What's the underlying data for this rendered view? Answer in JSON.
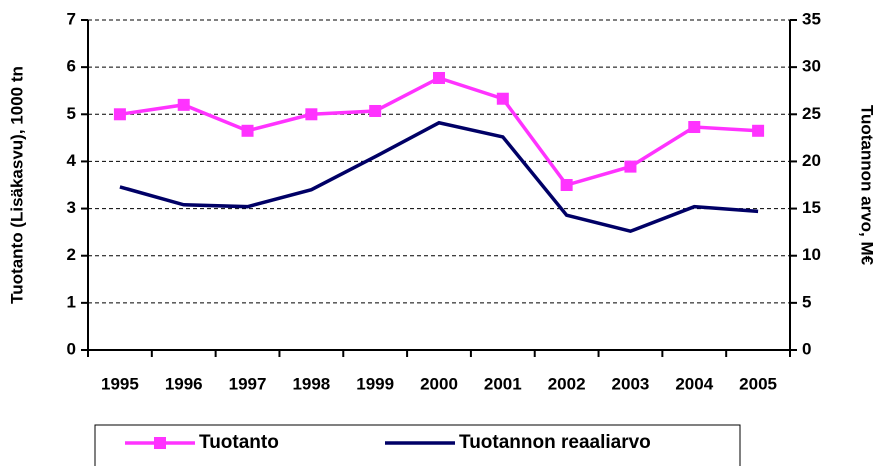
{
  "chart_data": {
    "type": "line",
    "ylabel": "Tuotanto (Lisäkasvu), 1000 tn",
    "y2label": "Tuotannon arvo, M€",
    "categories": [
      "1995",
      "1996",
      "1997",
      "1998",
      "1999",
      "2000",
      "2001",
      "2002",
      "2003",
      "2004",
      "2005"
    ],
    "series": [
      {
        "name": "Tuotanto",
        "color": "#ff33ff",
        "marker": "square",
        "values": [
          5.0,
          5.2,
          4.65,
          5.0,
          5.07,
          5.77,
          5.33,
          3.5,
          3.89,
          4.73,
          4.65
        ]
      },
      {
        "name": "Tuotannon reaaliarvo",
        "color": "#000066",
        "axis": "y2",
        "values": [
          17.3,
          15.4,
          15.2,
          17.0,
          20.5,
          24.1,
          22.6,
          14.3,
          12.6,
          15.2,
          14.7
        ]
      }
    ],
    "ylim": [
      0,
      7
    ],
    "yticks": [
      0,
      1,
      2,
      3,
      4,
      5,
      6,
      7
    ],
    "y2lim": [
      0,
      35
    ],
    "y2ticks": [
      0,
      5,
      10,
      15,
      20,
      25,
      30,
      35
    ],
    "grid": true,
    "legend": "bottom"
  }
}
